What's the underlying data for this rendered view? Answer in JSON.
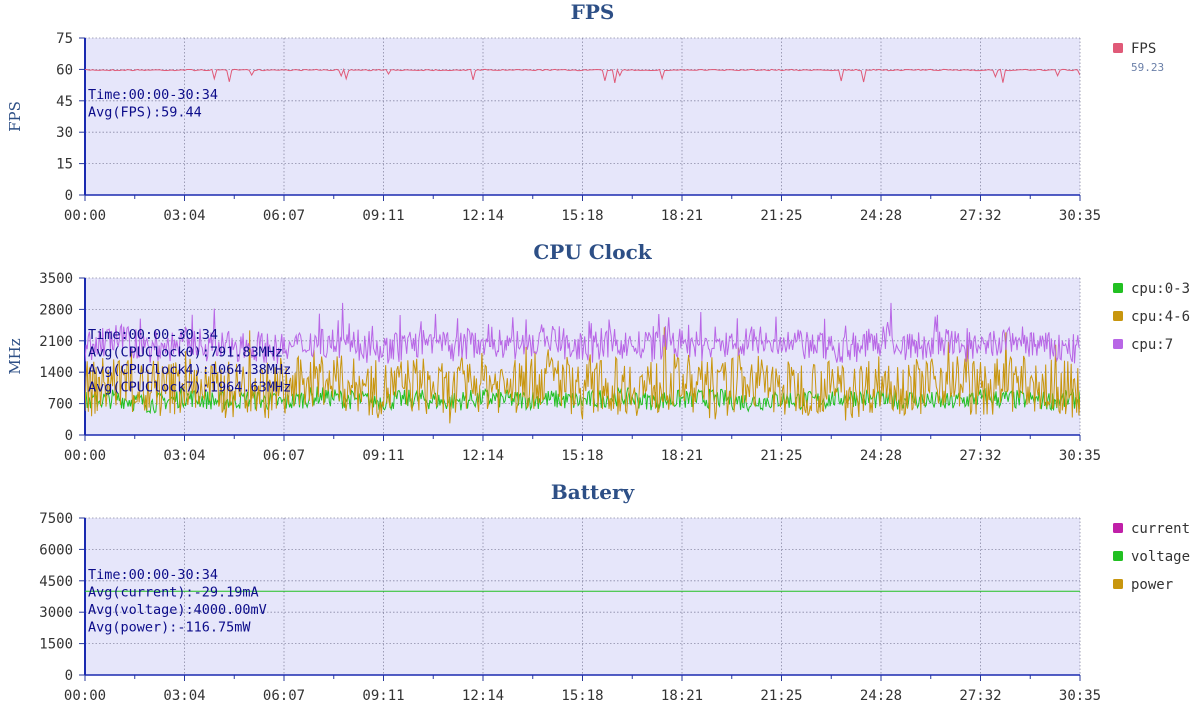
{
  "chart_data": [
    {
      "type": "line",
      "title": "FPS",
      "ylabel": "FPS",
      "ylim": [
        0,
        75
      ],
      "yticks": [
        0,
        15,
        30,
        45,
        60,
        75
      ],
      "xticks": [
        "00:00",
        "03:04",
        "06:07",
        "09:11",
        "12:14",
        "15:18",
        "18:21",
        "21:25",
        "24:28",
        "27:32",
        "30:35"
      ],
      "grid": true,
      "legend_position": "right",
      "annotations": [
        "Time:00:00-30:34",
        "Avg(FPS):59.44"
      ],
      "series": [
        {
          "name": "FPS",
          "color": "#e05a78",
          "legend_value": "59.23",
          "values": [
            60,
            59.5,
            60,
            59.8,
            60,
            59.6,
            60,
            59.7,
            60,
            59.5,
            60,
            59.8,
            60,
            59.4,
            60,
            59.7,
            60,
            59.6,
            60,
            59.8,
            60,
            59.5,
            60,
            59.7,
            60,
            59.6,
            60,
            59.8,
            60,
            59.5,
            60
          ]
        }
      ]
    },
    {
      "type": "line",
      "title": "CPU Clock",
      "ylabel": "MHz",
      "ylim": [
        0,
        3500
      ],
      "yticks": [
        0,
        700,
        1400,
        2100,
        2800,
        3500
      ],
      "xticks": [
        "00:00",
        "03:04",
        "06:07",
        "09:11",
        "12:14",
        "15:18",
        "18:21",
        "21:25",
        "24:28",
        "27:32",
        "30:35"
      ],
      "grid": true,
      "legend_position": "right",
      "annotations": [
        "Time:00:00-30:34",
        "Avg(CPUClock0):791.83MHz",
        "Avg(CPUClock4):1064.38MHz",
        "Avg(CPUClock7):1964.63MHz"
      ],
      "series": [
        {
          "name": "cpu:0-3",
          "color": "#22c022",
          "values": [
            750,
            820,
            700,
            850,
            760,
            800,
            720,
            880,
            790,
            760,
            810,
            740,
            830,
            780,
            800,
            750,
            860,
            770,
            790,
            820,
            740,
            800,
            760,
            850,
            780,
            800,
            720,
            830,
            790,
            760,
            800
          ]
        },
        {
          "name": "cpu:4-6",
          "color": "#c8960e",
          "values": [
            1000,
            1200,
            900,
            1150,
            1000,
            1050,
            950,
            1300,
            1100,
            1000,
            1150,
            900,
            1200,
            1050,
            1350,
            1000,
            1100,
            1050,
            1200,
            950,
            1250,
            1000,
            1100,
            950,
            1200,
            1050,
            1300,
            1000,
            1150,
            1050,
            1000
          ]
        },
        {
          "name": "cpu:7",
          "color": "#b866e6",
          "values": [
            1950,
            2150,
            1900,
            2050,
            1950,
            2000,
            1900,
            2100,
            2000,
            1900,
            2050,
            1950,
            2100,
            2000,
            2150,
            1900,
            2050,
            1950,
            2050,
            1900,
            2150,
            1950,
            2000,
            1900,
            2100,
            1950,
            2050,
            1900,
            2150,
            1950,
            1900
          ]
        }
      ]
    },
    {
      "type": "line",
      "title": "Battery",
      "ylabel": "",
      "ylim": [
        0,
        7500
      ],
      "yticks": [
        0,
        1500,
        3000,
        4500,
        6000,
        7500
      ],
      "xticks": [
        "00:00",
        "03:04",
        "06:07",
        "09:11",
        "12:14",
        "15:18",
        "18:21",
        "21:25",
        "24:28",
        "27:32",
        "30:35"
      ],
      "grid": true,
      "legend_position": "right",
      "annotations": [
        "Time:00:00-30:34",
        "Avg(current):-29.19mA",
        "Avg(voltage):4000.00mV",
        "Avg(power):-116.75mW"
      ],
      "series": [
        {
          "name": "current",
          "color": "#c020a8",
          "values": [
            -29,
            -29,
            -29,
            -29,
            -29,
            -29,
            -29,
            -29,
            -29,
            -29,
            -29
          ]
        },
        {
          "name": "voltage",
          "color": "#22c022",
          "values": [
            4000,
            4000,
            4000,
            4000,
            4000,
            4000,
            4000,
            4000,
            4000,
            4000,
            4000
          ]
        },
        {
          "name": "power",
          "color": "#c8960e",
          "values": [
            -117,
            -117,
            -117,
            -117,
            -117,
            -117,
            -117,
            -117,
            -117,
            -117,
            -117
          ]
        }
      ]
    }
  ]
}
